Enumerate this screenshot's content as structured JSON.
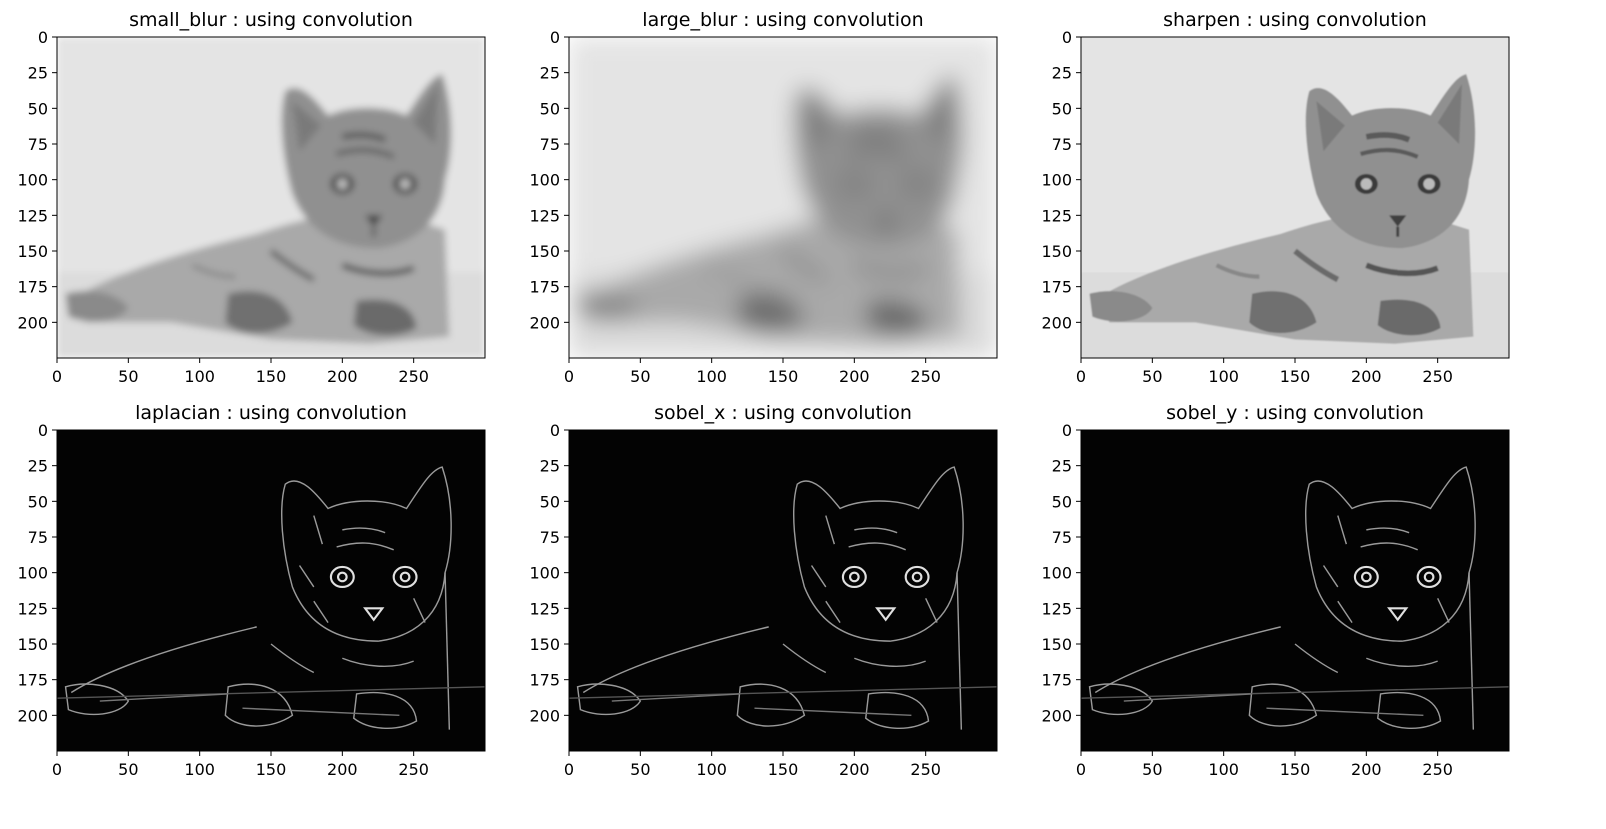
{
  "figure": {
    "panels": [
      {
        "title": "small_blur : using convolution",
        "filter": "small_blur",
        "tone": "light",
        "x_ticks": [
          "0",
          "50",
          "100",
          "150",
          "200",
          "250"
        ],
        "y_ticks": [
          "0",
          "25",
          "50",
          "75",
          "100",
          "125",
          "150",
          "175",
          "200"
        ]
      },
      {
        "title": "large_blur : using convolution",
        "filter": "large_blur",
        "tone": "light",
        "x_ticks": [
          "0",
          "50",
          "100",
          "150",
          "200",
          "250"
        ],
        "y_ticks": [
          "0",
          "25",
          "50",
          "75",
          "100",
          "125",
          "150",
          "175",
          "200"
        ]
      },
      {
        "title": "sharpen : using convolution",
        "filter": "sharpen",
        "tone": "light",
        "x_ticks": [
          "0",
          "50",
          "100",
          "150",
          "200",
          "250"
        ],
        "y_ticks": [
          "0",
          "25",
          "50",
          "75",
          "100",
          "125",
          "150",
          "175",
          "200"
        ]
      },
      {
        "title": "laplacian : using convolution",
        "filter": "laplacian",
        "tone": "dark",
        "x_ticks": [
          "0",
          "50",
          "100",
          "150",
          "200",
          "250"
        ],
        "y_ticks": [
          "0",
          "25",
          "50",
          "75",
          "100",
          "125",
          "150",
          "175",
          "200"
        ]
      },
      {
        "title": "sobel_x : using convolution",
        "filter": "sobel_x",
        "tone": "dark",
        "x_ticks": [
          "0",
          "50",
          "100",
          "150",
          "200",
          "250"
        ],
        "y_ticks": [
          "0",
          "25",
          "50",
          "75",
          "100",
          "125",
          "150",
          "175",
          "200"
        ]
      },
      {
        "title": "sobel_y : using convolution",
        "filter": "sobel_y",
        "tone": "dark",
        "x_ticks": [
          "0",
          "50",
          "100",
          "150",
          "200",
          "250"
        ],
        "y_ticks": [
          "0",
          "25",
          "50",
          "75",
          "100",
          "125",
          "150",
          "175",
          "200"
        ]
      }
    ],
    "image_extent": {
      "x": [
        0,
        300
      ],
      "y": [
        225,
        0
      ]
    },
    "colors": {
      "light_bg": "#e6e6e6",
      "dark_bg": "#030303",
      "text": "#000000"
    },
    "subject": "kitten"
  }
}
